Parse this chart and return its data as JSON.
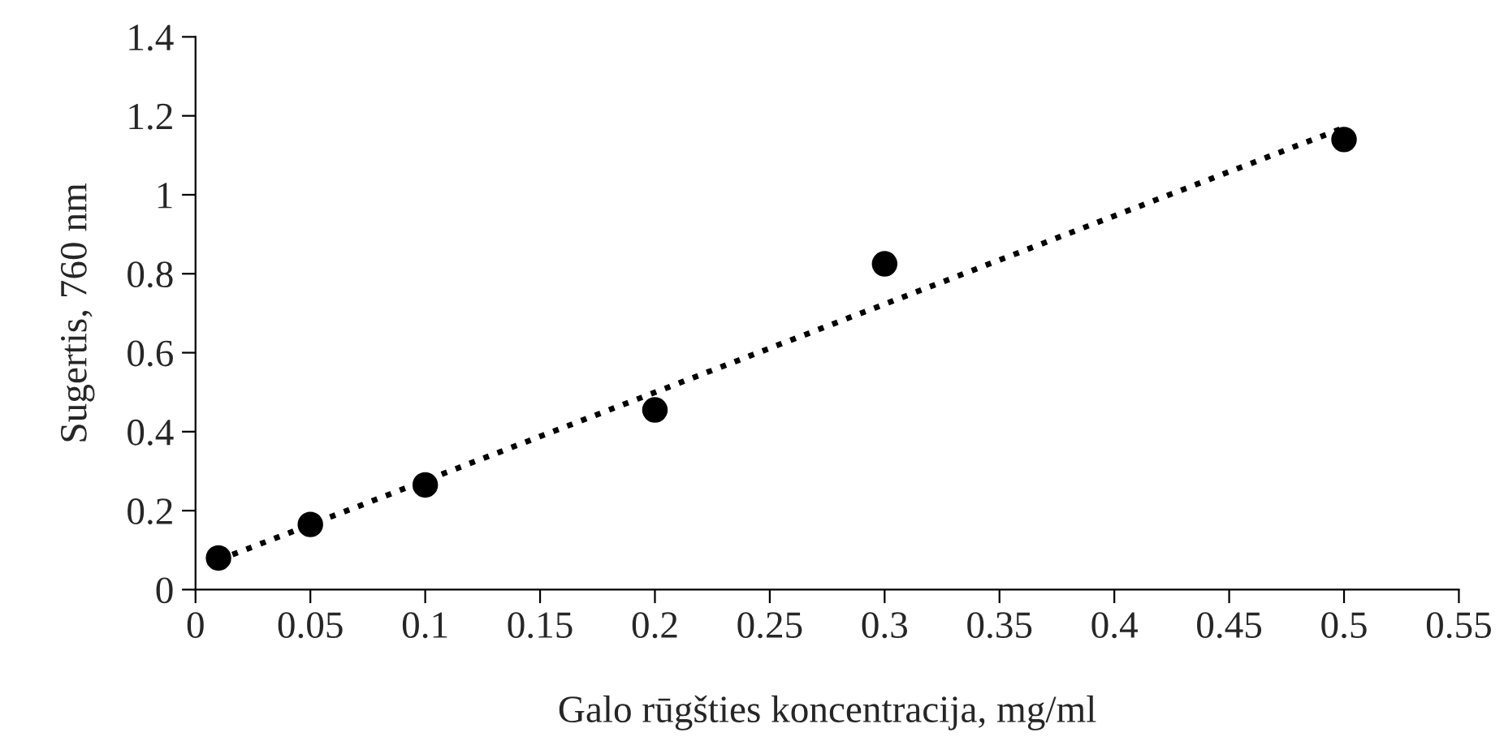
{
  "chart_data": {
    "type": "scatter",
    "xlabel": "Galo rūgšties koncentracija, mg/ml",
    "ylabel": "Sugertis, 760 nm",
    "x": [
      0.01,
      0.05,
      0.1,
      0.2,
      0.3,
      0.5
    ],
    "series": [
      {
        "color": "#000000",
        "marker": "circle",
        "values": [
          0.08,
          0.165,
          0.265,
          0.455,
          0.825,
          1.14
        ]
      },
      {
        "type": "line",
        "color": "#000000",
        "line_style": "dotted",
        "marker": "none",
        "x": [
          0.01,
          0.5
        ],
        "values": [
          0.075,
          1.17
        ]
      }
    ],
    "xlim": [
      0,
      0.55
    ],
    "xticks": [
      0,
      0.05,
      0.1,
      0.15,
      0.2,
      0.25,
      0.3,
      0.35,
      0.4,
      0.45,
      0.5,
      0.55
    ],
    "ylim": [
      0,
      1.4
    ],
    "yticks": [
      0,
      0.2,
      0.4,
      0.6,
      0.8,
      1,
      1.2,
      1.4
    ],
    "grid": false,
    "legend": false
  }
}
